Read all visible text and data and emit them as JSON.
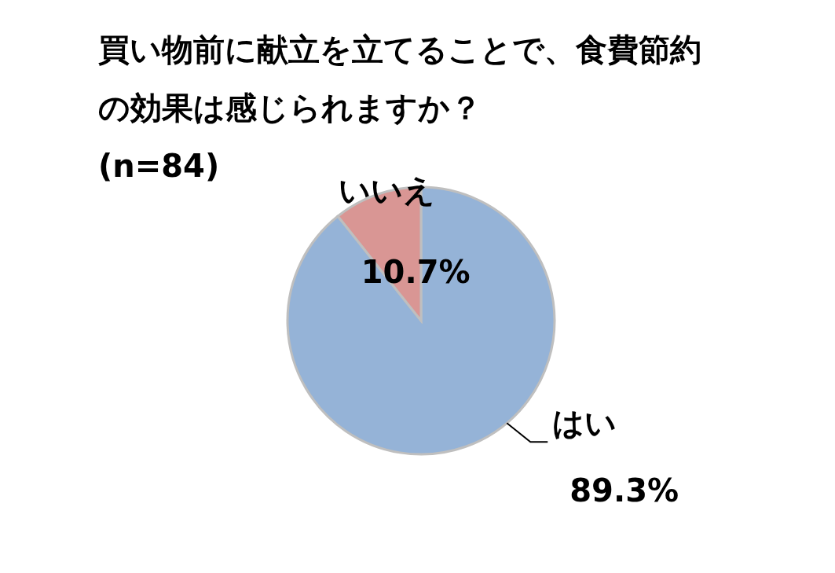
{
  "chart_data": {
    "type": "pie",
    "title": "買い物前に献立を立てることで、食費節約の効果は感じられますか？",
    "subtitle": "(n=84)",
    "categories": [
      "はい",
      "いいえ"
    ],
    "values": [
      89.3,
      10.7
    ],
    "colors": [
      "#95b3d7",
      "#d99694"
    ],
    "value_labels": [
      "89.3%",
      "10.7%"
    ],
    "legend": false
  }
}
